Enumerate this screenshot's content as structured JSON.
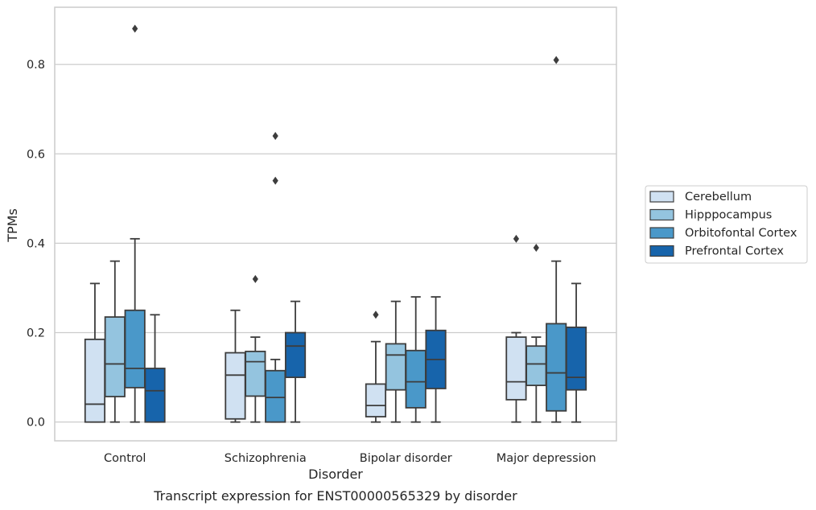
{
  "chart_data": {
    "type": "box",
    "xlabel": "Disorder",
    "ylabel": "TPMs",
    "caption": "Transcript expression for ENST00000565329 by disorder",
    "ylim": [
      -0.042,
      0.928
    ],
    "yticks": [
      0.0,
      0.2,
      0.4,
      0.6,
      0.8
    ],
    "ytick_labels": [
      "0.0",
      "0.2",
      "0.4",
      "0.6",
      "0.8"
    ],
    "grid": "horizontal",
    "legend_position": "right",
    "categories": [
      "Control",
      "Schizophrenia",
      "Bipolar disorder",
      "Major depression"
    ],
    "series": [
      {
        "name": "Cerebellum",
        "color": "#d0e1f2",
        "boxes": [
          {
            "whislo": 0.0,
            "q1": 0.0,
            "med": 0.04,
            "q3": 0.185,
            "whishi": 0.31,
            "fliers": []
          },
          {
            "whislo": 0.0,
            "q1": 0.007,
            "med": 0.105,
            "q3": 0.155,
            "whishi": 0.25,
            "fliers": []
          },
          {
            "whislo": 0.0,
            "q1": 0.012,
            "med": 0.037,
            "q3": 0.085,
            "whishi": 0.18,
            "fliers": [
              0.24
            ]
          },
          {
            "whislo": 0.0,
            "q1": 0.05,
            "med": 0.09,
            "q3": 0.19,
            "whishi": 0.2,
            "fliers": [
              0.41
            ]
          }
        ]
      },
      {
        "name": "Hipppocampus",
        "color": "#94c4df",
        "boxes": [
          {
            "whislo": 0.0,
            "q1": 0.057,
            "med": 0.13,
            "q3": 0.235,
            "whishi": 0.36,
            "fliers": []
          },
          {
            "whislo": 0.0,
            "q1": 0.058,
            "med": 0.135,
            "q3": 0.158,
            "whishi": 0.19,
            "fliers": [
              0.32
            ]
          },
          {
            "whislo": 0.0,
            "q1": 0.072,
            "med": 0.15,
            "q3": 0.175,
            "whishi": 0.27,
            "fliers": []
          },
          {
            "whislo": 0.0,
            "q1": 0.082,
            "med": 0.13,
            "q3": 0.17,
            "whishi": 0.19,
            "fliers": [
              0.39
            ]
          }
        ]
      },
      {
        "name": "Orbitofontal Cortex",
        "color": "#4a98c9",
        "boxes": [
          {
            "whislo": 0.0,
            "q1": 0.077,
            "med": 0.12,
            "q3": 0.25,
            "whishi": 0.41,
            "fliers": [
              0.88
            ]
          },
          {
            "whislo": 0.0,
            "q1": 0.0,
            "med": 0.055,
            "q3": 0.115,
            "whishi": 0.14,
            "fliers": [
              0.54,
              0.64
            ]
          },
          {
            "whislo": 0.0,
            "q1": 0.032,
            "med": 0.09,
            "q3": 0.16,
            "whishi": 0.28,
            "fliers": []
          },
          {
            "whislo": 0.0,
            "q1": 0.025,
            "med": 0.11,
            "q3": 0.22,
            "whishi": 0.36,
            "fliers": [
              0.81
            ]
          }
        ]
      },
      {
        "name": "Prefrontal Cortex",
        "color": "#1764ab",
        "boxes": [
          {
            "whislo": 0.0,
            "q1": 0.0,
            "med": 0.07,
            "q3": 0.12,
            "whishi": 0.24,
            "fliers": []
          },
          {
            "whislo": 0.0,
            "q1": 0.1,
            "med": 0.17,
            "q3": 0.2,
            "whishi": 0.27,
            "fliers": []
          },
          {
            "whislo": 0.0,
            "q1": 0.075,
            "med": 0.14,
            "q3": 0.205,
            "whishi": 0.28,
            "fliers": []
          },
          {
            "whislo": 0.0,
            "q1": 0.072,
            "med": 0.1,
            "q3": 0.212,
            "whishi": 0.31,
            "fliers": []
          }
        ]
      }
    ]
  }
}
